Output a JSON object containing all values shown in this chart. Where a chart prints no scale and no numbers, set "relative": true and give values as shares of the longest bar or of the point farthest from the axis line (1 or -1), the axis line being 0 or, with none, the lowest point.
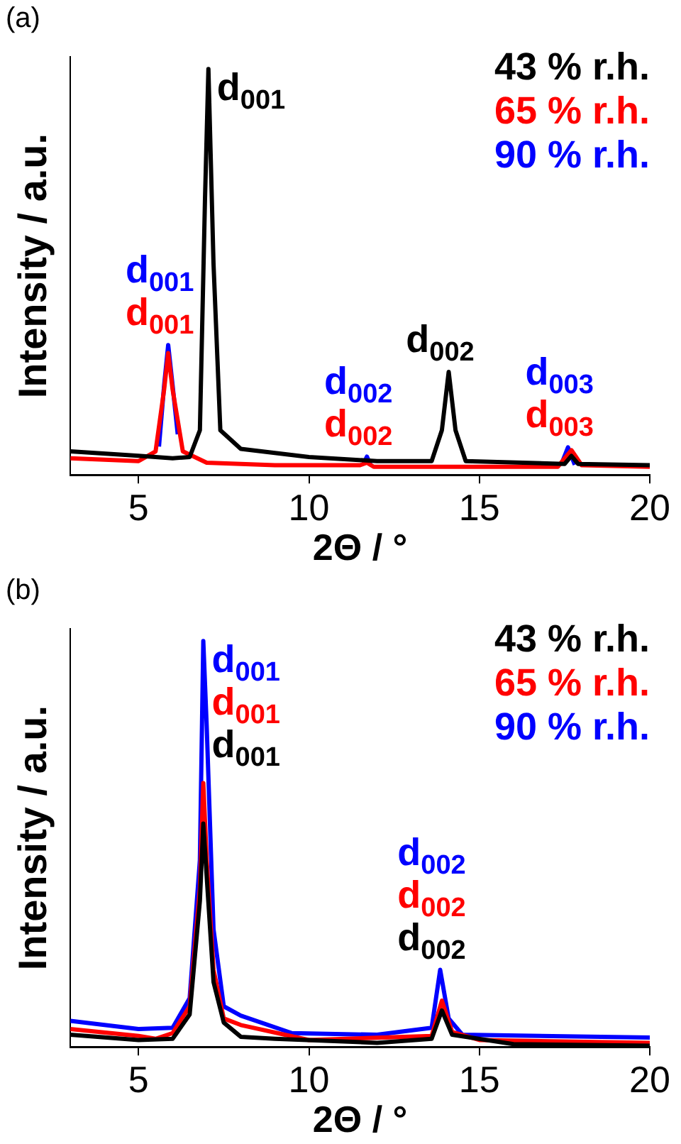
{
  "chart_data": [
    {
      "type": "line",
      "relative": true,
      "xlabel": "2Θ / °",
      "ylabel": "Intensity / a.u.",
      "xlim": [
        3,
        20
      ],
      "xticks": [
        5,
        10,
        15,
        20
      ],
      "legend": "top right",
      "annotations": [
        "(a)",
        {
          "text": "d$_{001}$",
          "x": 7.05,
          "y": 1.0
        },
        {
          "text": "d$_{002}$",
          "x": 14.1,
          "y": 0.254
        },
        {
          "text": "d$_{001}$",
          "x": 5.87,
          "y": 0.3
        },
        {
          "text": "d$_{002}$",
          "x": 11.7,
          "y": 0.03
        },
        {
          "text": "d$_{003}$",
          "x": 17.7,
          "y": 0.061
        },
        {
          "text": "d$_{001}$",
          "x": 5.87,
          "y": 0.32
        },
        {
          "text": "d$_{002}$",
          "x": 11.7,
          "y": 0.045
        },
        {
          "text": "d$_{003}$",
          "x": 17.6,
          "y": 0.068
        }
      ],
      "series": [
        {
          "name": "43 % r.h.",
          "color": "#000000",
          "x": [
            3,
            5,
            6,
            6.5,
            6.8,
            6.95,
            7.05,
            7.2,
            7.4,
            8,
            10,
            12,
            13.6,
            13.9,
            14.1,
            14.3,
            14.6,
            17.5,
            17.7,
            17.9,
            20
          ],
          "values": [
            0.058,
            0.047,
            0.041,
            0.044,
            0.11,
            0.68,
            1.0,
            0.52,
            0.11,
            0.064,
            0.044,
            0.034,
            0.034,
            0.11,
            0.254,
            0.11,
            0.034,
            0.027,
            0.047,
            0.027,
            0.024
          ]
        },
        {
          "name": "65 % r.h.",
          "color": "#ff0000",
          "x": [
            3,
            5,
            5.5,
            5.75,
            5.87,
            6.0,
            6.3,
            7,
            9,
            11.5,
            11.7,
            11.9,
            14,
            17.3,
            17.7,
            18,
            20
          ],
          "values": [
            0.041,
            0.034,
            0.058,
            0.21,
            0.3,
            0.21,
            0.058,
            0.03,
            0.024,
            0.024,
            0.03,
            0.02,
            0.02,
            0.02,
            0.061,
            0.024,
            0.02
          ]
        },
        {
          "name": "90 % r.h.",
          "color": "#0000ff",
          "x": [
            5.6,
            5.75,
            5.87,
            6.0,
            6.15,
            9,
            11.6,
            11.7,
            11.8,
            15,
            17.4,
            17.6,
            17.8
          ],
          "values": [
            0.07,
            0.22,
            0.32,
            0.22,
            0.1,
            null,
            0.027,
            0.045,
            0.026,
            null,
            0.025,
            0.068,
            0.025
          ]
        }
      ]
    },
    {
      "type": "line",
      "relative": true,
      "xlabel": "2Θ / °",
      "ylabel": "Intensity / a.u.",
      "xlim": [
        3,
        20
      ],
      "xticks": [
        5,
        10,
        15,
        20
      ],
      "legend": "top right",
      "annotations": [
        "(b)",
        {
          "text": "d$_{001}$",
          "x": 6.9,
          "y": 1.0
        },
        {
          "text": "d$_{001}$",
          "x": 6.9,
          "y": 0.65
        },
        {
          "text": "d$_{001}$",
          "x": 6.9,
          "y": 0.55
        },
        {
          "text": "d$_{002}$",
          "x": 13.85,
          "y": 0.19
        },
        {
          "text": "d$_{002}$",
          "x": 13.9,
          "y": 0.114
        },
        {
          "text": "d$_{002}$",
          "x": 13.9,
          "y": 0.09
        }
      ],
      "series": [
        {
          "name": "43 % r.h.",
          "color": "#000000",
          "x": [
            3,
            5,
            6,
            6.5,
            6.8,
            6.9,
            7.0,
            7.2,
            7.5,
            8,
            9,
            12,
            13.6,
            13.9,
            14.2,
            16,
            20
          ],
          "values": [
            0.03,
            0.017,
            0.02,
            0.08,
            0.36,
            0.55,
            0.42,
            0.16,
            0.06,
            0.025,
            0.02,
            0.01,
            0.02,
            0.09,
            0.03,
            0.007,
            0.003
          ]
        },
        {
          "name": "65 % r.h.",
          "color": "#ff0000",
          "x": [
            3,
            5,
            5.5,
            6,
            6.5,
            6.8,
            6.9,
            7.0,
            7.2,
            7.5,
            8,
            10,
            13.6,
            13.9,
            14.2,
            15,
            20
          ],
          "values": [
            0.044,
            0.027,
            0.02,
            0.034,
            0.1,
            0.39,
            0.65,
            0.46,
            0.19,
            0.07,
            0.054,
            0.017,
            0.027,
            0.114,
            0.037,
            0.017,
            0.01
          ]
        },
        {
          "name": "90 % r.h.",
          "color": "#0000ff",
          "x": [
            3,
            5,
            6,
            6.5,
            6.8,
            6.9,
            7.0,
            7.2,
            7.5,
            8,
            9.5,
            12,
            13.6,
            13.85,
            14.1,
            14.5,
            20
          ],
          "values": [
            0.064,
            0.044,
            0.047,
            0.12,
            0.46,
            1.0,
            0.79,
            0.29,
            0.1,
            0.077,
            0.034,
            0.03,
            0.047,
            0.19,
            0.07,
            0.03,
            0.023
          ]
        }
      ]
    }
  ]
}
